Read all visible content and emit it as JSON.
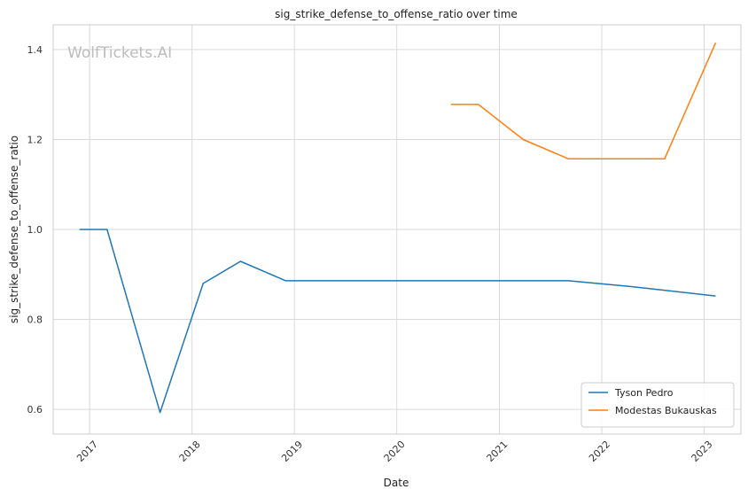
{
  "chart_data": {
    "type": "line",
    "title": "sig_strike_defense_to_offense_ratio over time",
    "xlabel": "Date",
    "ylabel": "sig_strike_defense_to_offense_ratio",
    "watermark": "WolfTickets.AI",
    "x_ticks": [
      "2017",
      "2018",
      "2019",
      "2020",
      "2021",
      "2022",
      "2023"
    ],
    "y_ticks": [
      "0.6",
      "0.8",
      "1.0",
      "1.2",
      "1.4"
    ],
    "xlim": [
      "2016-08-24",
      "2023-05-12"
    ],
    "ylim": [
      0.545,
      1.455
    ],
    "grid": true,
    "legend_position": "lower right",
    "series": [
      {
        "name": "Tyson Pedro",
        "color": "#1f77b4",
        "points": [
          [
            "2016-11-26",
            1.0
          ],
          [
            "2017-03-04",
            1.0
          ],
          [
            "2017-09-09",
            0.593
          ],
          [
            "2018-02-10",
            0.88
          ],
          [
            "2018-06-23",
            0.929
          ],
          [
            "2018-12-01",
            0.886
          ],
          [
            "2021-09-04",
            0.886
          ],
          [
            "2022-04-16",
            0.873
          ],
          [
            "2023-02-11",
            0.852
          ]
        ]
      },
      {
        "name": "Modestas Bukauskas",
        "color": "#ff7f0e",
        "points": [
          [
            "2020-07-12",
            1.278
          ],
          [
            "2020-10-18",
            1.278
          ],
          [
            "2021-03-27",
            1.2
          ],
          [
            "2021-09-04",
            1.157
          ],
          [
            "2022-08-13",
            1.157
          ],
          [
            "2023-02-11",
            1.415
          ]
        ]
      }
    ]
  }
}
